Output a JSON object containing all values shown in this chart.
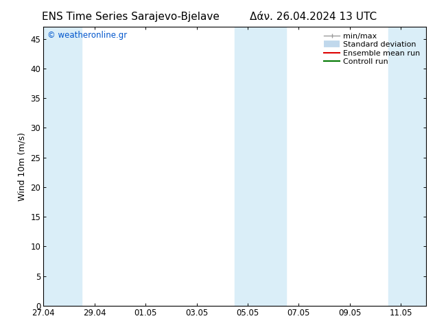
{
  "title_left": "ENS Time Series Sarajevo-Bjelave",
  "title_right": "Δάν. 26.04.2024 13 UTC",
  "ylabel": "Wind 10m (m/s)",
  "watermark": "© weatheronline.gr",
  "watermark_color": "#0055cc",
  "ylim": [
    0,
    47
  ],
  "yticks": [
    0,
    5,
    10,
    15,
    20,
    25,
    30,
    35,
    40,
    45
  ],
  "xtick_labels": [
    "27.04",
    "29.04",
    "01.05",
    "03.05",
    "05.05",
    "07.05",
    "09.05",
    "11.05"
  ],
  "xtick_positions": [
    0,
    2,
    4,
    6,
    8,
    10,
    12,
    14
  ],
  "xlim": [
    0,
    15
  ],
  "bg_color": "#ffffff",
  "plot_bg_color": "#ffffff",
  "band_color": "#daeef8",
  "shaded_bands": [
    {
      "x_start": 0.0,
      "x_end": 1.5
    },
    {
      "x_start": 7.5,
      "x_end": 9.5
    },
    {
      "x_start": 13.5,
      "x_end": 15.0
    }
  ],
  "legend_items": [
    {
      "label": "min/max",
      "type": "minmax",
      "color": "#999999"
    },
    {
      "label": "Standard deviation",
      "type": "stddev",
      "color": "#c0d8ec"
    },
    {
      "label": "Ensemble mean run",
      "type": "line",
      "color": "#dd0000",
      "linewidth": 1.5
    },
    {
      "label": "Controll run",
      "type": "line",
      "color": "#007700",
      "linewidth": 1.5
    }
  ],
  "title_fontsize": 11,
  "axis_fontsize": 9,
  "tick_fontsize": 8.5,
  "watermark_fontsize": 8.5,
  "legend_fontsize": 8
}
